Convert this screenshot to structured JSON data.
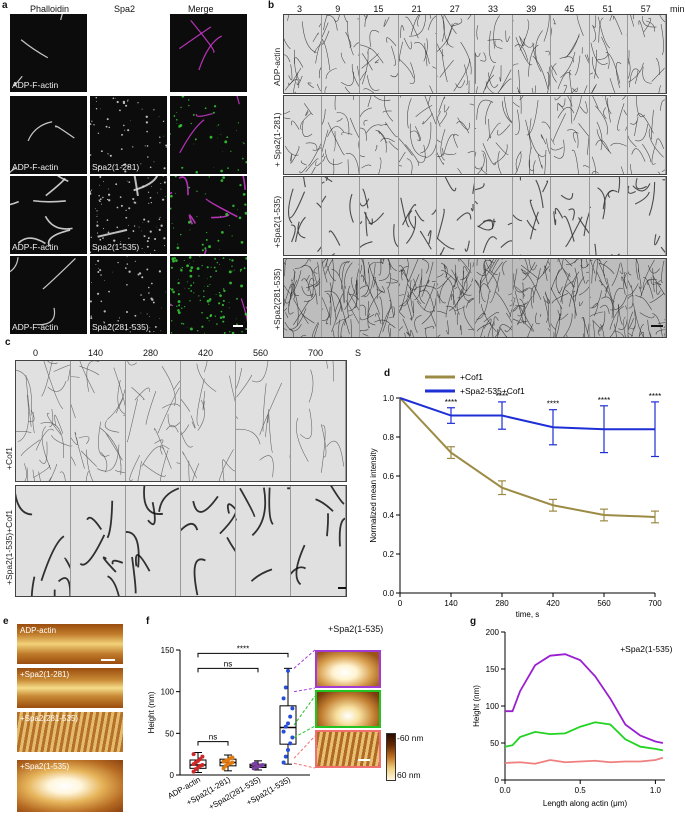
{
  "panel_a": {
    "letter": "a",
    "col_headers": [
      "Phalloidin",
      "Spa2",
      "Merge"
    ],
    "rows": [
      {
        "actin": "ADP-F-actin",
        "spa2": ""
      },
      {
        "actin": "ADP-F-actin",
        "spa2": "Spa2(1-281)"
      },
      {
        "actin": "ADP-F-actin",
        "spa2": "Spa2(1-535)"
      },
      {
        "actin": "ADP-F-actin",
        "spa2": "Spa2(281-535)"
      }
    ]
  },
  "panel_b": {
    "letter": "b",
    "time_labels": [
      "3",
      "9",
      "15",
      "21",
      "27",
      "33",
      "39",
      "45",
      "51",
      "57"
    ],
    "unit": "min",
    "rows": [
      "ADP-actin",
      "+ Spa2(1-281)",
      "+Spa2(1-535)",
      "+Spa2(281-535)"
    ]
  },
  "panel_c": {
    "letter": "c",
    "time_labels": [
      "0",
      "140",
      "280",
      "420",
      "560",
      "700"
    ],
    "unit": "S",
    "rows": [
      "+Cof1",
      "+Spa2(1-535)+Cof1"
    ]
  },
  "panel_e": {
    "letter": "e",
    "rows": [
      "ADP-actin",
      "+Spa2(1-281)",
      "+Spa2(281-535)",
      "+Spa2(1-535)"
    ]
  },
  "panel_f_inset": {
    "title": "+Spa2(1-535)",
    "scale_top": "-60 nm",
    "scale_bottom": "60 nm"
  },
  "chart_data": [
    {
      "panel": "d",
      "type": "line",
      "xlabel": "time, s",
      "ylabel": "Normalized mean intensity",
      "xlim": [
        0,
        700
      ],
      "ylim": [
        0,
        1.0
      ],
      "xticks": [
        0,
        140,
        280,
        420,
        560,
        700
      ],
      "yticks": [
        0.0,
        0.2,
        0.4,
        0.6,
        0.8,
        1.0
      ],
      "legend_position": "top",
      "series": [
        {
          "name": "+Cof1",
          "color": "#9c8b45",
          "x": [
            0,
            140,
            280,
            420,
            560,
            700
          ],
          "y": [
            1.0,
            0.72,
            0.54,
            0.45,
            0.4,
            0.39
          ],
          "err": [
            0,
            0.03,
            0.035,
            0.03,
            0.03,
            0.03
          ]
        },
        {
          "name": "+Spa2-535+Cof1",
          "color": "#1f2fd6",
          "x": [
            0,
            140,
            280,
            420,
            560,
            700
          ],
          "y": [
            1.0,
            0.91,
            0.91,
            0.85,
            0.84,
            0.84
          ],
          "err": [
            0,
            0.04,
            0.07,
            0.09,
            0.12,
            0.14
          ]
        }
      ],
      "annotations": [
        "****",
        "****",
        "****",
        "****",
        "****"
      ]
    },
    {
      "panel": "f",
      "type": "box",
      "ylabel": "Height (nm)",
      "ylim": [
        0,
        150
      ],
      "yticks": [
        0,
        50,
        100,
        150
      ],
      "categories": [
        "ADP-actin",
        "+Spa2(1-281)",
        "+Spa2(281-535)",
        "+Spa2(1-535)"
      ],
      "colors": [
        "#cc2a2a",
        "#e07a10",
        "#7a3fa0",
        "#2a4fd6"
      ],
      "boxes": [
        {
          "min": 3,
          "q1": 8,
          "median": 12,
          "q3": 18,
          "max": 27,
          "points": [
            4,
            7,
            9,
            11,
            12,
            13,
            15,
            17,
            19,
            22,
            25
          ]
        },
        {
          "min": 5,
          "q1": 11,
          "median": 15,
          "q3": 19,
          "max": 24,
          "points": [
            8,
            11,
            13,
            14,
            15,
            16,
            17,
            18,
            20,
            21
          ]
        },
        {
          "min": 6,
          "q1": 9,
          "median": 11,
          "q3": 13,
          "max": 17,
          "points": [
            8,
            9,
            10,
            11,
            12,
            13,
            14
          ]
        },
        {
          "min": 13,
          "q1": 37,
          "median": 57,
          "q3": 83,
          "max": 128,
          "points": [
            15,
            22,
            30,
            38,
            45,
            52,
            58,
            62,
            70,
            80,
            92,
            105,
            125
          ]
        }
      ],
      "annotations": [
        "****",
        "ns",
        "ns"
      ]
    },
    {
      "panel": "g",
      "type": "line",
      "xlabel": "Length along actin (μm)",
      "ylabel": "Height (nm)",
      "xlim": [
        0,
        1.0
      ],
      "ylim": [
        0,
        200
      ],
      "xticks": [
        0.0,
        0.5,
        1.0
      ],
      "yticks": [
        0,
        50,
        100,
        150,
        200
      ],
      "annotation": "+Spa2(1-535)",
      "series": [
        {
          "color": "#9a1fd0",
          "x": [
            0,
            0.05,
            0.1,
            0.2,
            0.3,
            0.4,
            0.5,
            0.6,
            0.7,
            0.8,
            0.9,
            1.0,
            1.05
          ],
          "y": [
            93,
            93,
            120,
            155,
            168,
            170,
            162,
            140,
            110,
            75,
            60,
            52,
            50
          ]
        },
        {
          "color": "#22d422",
          "x": [
            0,
            0.05,
            0.1,
            0.2,
            0.3,
            0.4,
            0.5,
            0.6,
            0.7,
            0.8,
            0.9,
            1.0,
            1.05
          ],
          "y": [
            45,
            47,
            58,
            65,
            62,
            63,
            72,
            78,
            75,
            55,
            45,
            42,
            40
          ]
        },
        {
          "color": "#f08080",
          "x": [
            0,
            0.1,
            0.2,
            0.3,
            0.4,
            0.5,
            0.6,
            0.7,
            0.8,
            0.9,
            1.0,
            1.05
          ],
          "y": [
            23,
            24,
            22,
            27,
            24,
            25,
            26,
            24,
            25,
            25,
            27,
            30
          ]
        }
      ]
    }
  ]
}
